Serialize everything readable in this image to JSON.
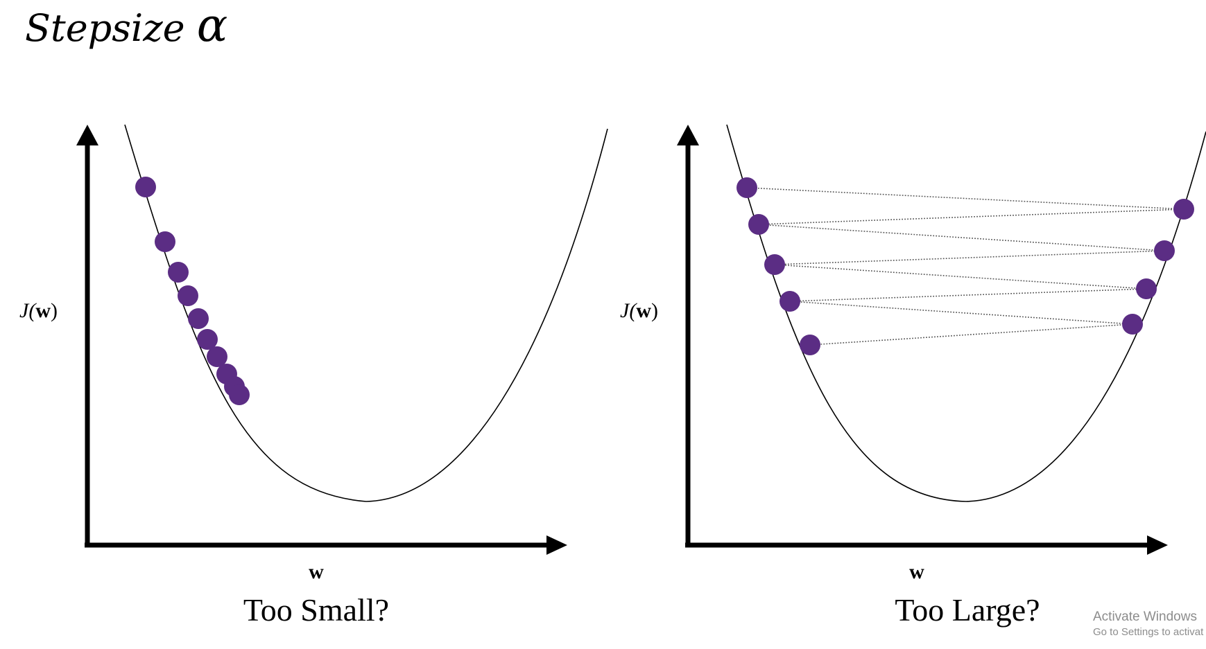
{
  "title": {
    "text": "Stepsize",
    "symbol": "α"
  },
  "panels": [
    {
      "id": "too-small",
      "ylabel": {
        "pre": "J(",
        "bold": "w",
        "post": ")"
      },
      "xlabel": "w",
      "caption": "Too Small?"
    },
    {
      "id": "too-large",
      "ylabel": {
        "pre": "J(",
        "bold": "w",
        "post": ")"
      },
      "xlabel": "w",
      "caption": "Too Large?"
    }
  ],
  "watermark": {
    "line1": "Activate Windows",
    "line2": "Go to Settings to activat"
  },
  "colors": {
    "dot": "#5b2d84",
    "curve": "#000000",
    "axis": "#000000",
    "jump_line": "#555555"
  }
}
